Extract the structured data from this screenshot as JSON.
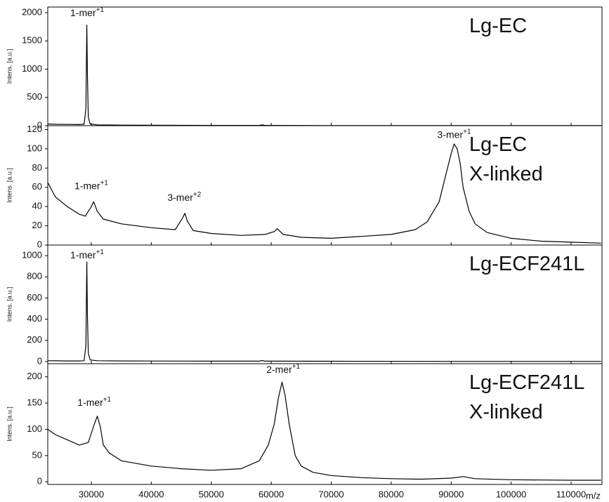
{
  "chart_data": [
    {
      "type": "line",
      "title": [
        "Lg-EC"
      ],
      "y_label": "Intens. [a.u.]",
      "color": "#000000",
      "xlim": [
        22740,
        115150
      ],
      "ylim": [
        0,
        2100
      ],
      "yticks": [
        0,
        500,
        1000,
        1500,
        2000
      ],
      "x": [
        22740,
        24000,
        26000,
        28000,
        28800,
        29100,
        29250,
        29350,
        29500,
        29800,
        31000,
        35000,
        40000,
        50000,
        58000,
        58500,
        59000,
        70000,
        90000,
        115000
      ],
      "values": [
        30,
        25,
        22,
        20,
        25,
        300,
        1780,
        950,
        150,
        30,
        15,
        10,
        8,
        5,
        5,
        15,
        5,
        3,
        2,
        2
      ],
      "annotations": [
        {
          "text": "1-mer",
          "sup": "+1",
          "x": 29300,
          "y": 1990
        }
      ]
    },
    {
      "type": "line",
      "title": [
        "Lg-EC",
        "X-linked"
      ],
      "y_label": "Intens. [a.u.]",
      "color": "#000000",
      "xlim": [
        22740,
        115150
      ],
      "ylim": [
        0,
        124
      ],
      "yticks": [
        0,
        20,
        40,
        60,
        80,
        100,
        120
      ],
      "x": [
        22740,
        24000,
        26000,
        28000,
        29000,
        30000,
        30400,
        31000,
        32000,
        35000,
        40000,
        44000,
        45200,
        45600,
        46000,
        47000,
        50000,
        55000,
        59000,
        60500,
        61000,
        62000,
        65000,
        70000,
        75000,
        80000,
        84000,
        86000,
        88000,
        89000,
        90000,
        90500,
        91000,
        91500,
        92000,
        93000,
        94000,
        96000,
        100000,
        105000,
        110000,
        115000
      ],
      "values": [
        65,
        50,
        40,
        32,
        30,
        40,
        45,
        35,
        27,
        22,
        18,
        16,
        28,
        33,
        25,
        15,
        12,
        10,
        11,
        14,
        17,
        11,
        8,
        7,
        9,
        11,
        16,
        24,
        45,
        70,
        95,
        105,
        100,
        85,
        60,
        35,
        22,
        13,
        7,
        4,
        3,
        2
      ],
      "annotations": [
        {
          "text": "1-mer",
          "sup": "+1",
          "x": 30000,
          "y": 61
        },
        {
          "text": "3-mer",
          "sup": "+2",
          "x": 45500,
          "y": 49
        },
        {
          "text": "3-mer",
          "sup": "+1",
          "x": 90500,
          "y": 114
        }
      ]
    },
    {
      "type": "line",
      "title": [
        "Lg-ECF241L"
      ],
      "y_label": "Intens. [a.u.]",
      "color": "#000000",
      "xlim": [
        22740,
        115150
      ],
      "ylim": [
        -20,
        1100
      ],
      "yticks": [
        0,
        200,
        400,
        600,
        800,
        1000
      ],
      "x": [
        22740,
        24000,
        26000,
        28000,
        28800,
        29100,
        29250,
        29350,
        29500,
        29800,
        31000,
        35000,
        40000,
        50000,
        58000,
        58500,
        59000,
        70000,
        90000,
        115000
      ],
      "values": [
        8,
        7,
        6,
        6,
        8,
        150,
        940,
        460,
        80,
        15,
        8,
        6,
        5,
        4,
        4,
        10,
        4,
        3,
        2,
        2
      ],
      "annotations": [
        {
          "text": "1-mer",
          "sup": "+1",
          "x": 29300,
          "y": 1000
        }
      ]
    },
    {
      "type": "line",
      "title": [
        "Lg-ECF241L",
        "X-linked"
      ],
      "y_label": "Intens. [a.u.]",
      "x_label": "m/z",
      "color": "#000000",
      "xlim": [
        22740,
        115150
      ],
      "ylim": [
        -5,
        225
      ],
      "yticks": [
        0,
        50,
        100,
        150,
        200
      ],
      "xticks": [
        30000,
        40000,
        50000,
        60000,
        70000,
        80000,
        90000,
        100000,
        110000
      ],
      "x": [
        22740,
        24000,
        26000,
        28000,
        29500,
        30500,
        31000,
        31500,
        32000,
        33000,
        35000,
        40000,
        45000,
        50000,
        55000,
        58000,
        59500,
        60500,
        61200,
        61800,
        62300,
        63000,
        64000,
        65000,
        67000,
        70000,
        75000,
        80000,
        85000,
        90000,
        92000,
        94000,
        100000,
        110000,
        115000
      ],
      "values": [
        100,
        90,
        80,
        70,
        75,
        110,
        125,
        105,
        70,
        55,
        40,
        30,
        25,
        22,
        25,
        40,
        70,
        110,
        160,
        190,
        165,
        110,
        50,
        30,
        18,
        12,
        8,
        6,
        5,
        7,
        10,
        6,
        4,
        3,
        3
      ],
      "annotations": [
        {
          "text": "1-mer",
          "sup": "+1",
          "x": 30500,
          "y": 150
        },
        {
          "text": "2-mer",
          "sup": "+1",
          "x": 62000,
          "y": 213
        }
      ]
    }
  ]
}
